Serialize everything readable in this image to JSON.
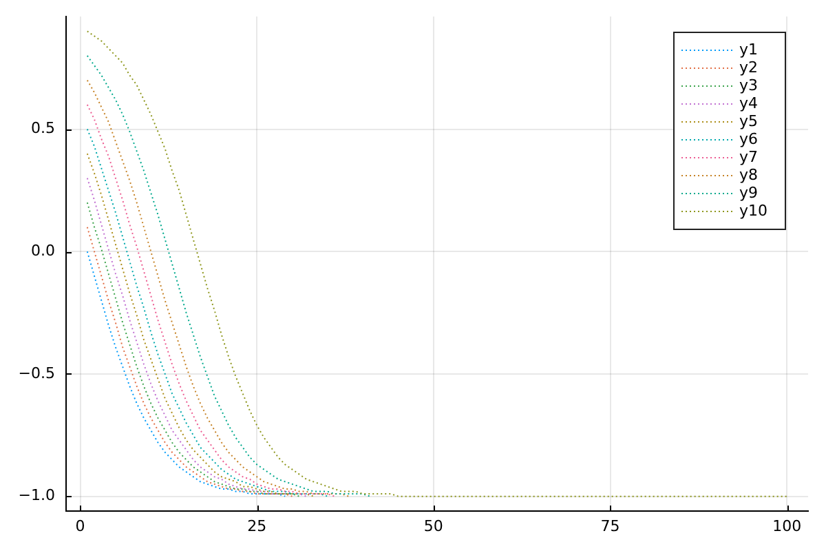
{
  "chart_data": {
    "type": "line",
    "x": [
      1,
      2,
      3,
      4,
      5,
      6,
      7,
      8,
      9,
      10,
      11,
      12,
      13,
      14,
      15,
      16,
      17,
      18,
      19,
      20,
      21,
      22,
      23,
      24,
      25,
      26,
      27,
      28,
      29,
      30,
      31,
      32,
      33,
      34,
      35,
      36,
      37,
      38,
      39,
      40,
      41,
      42,
      43,
      44,
      45,
      100
    ],
    "series": [
      {
        "name": "y1",
        "color": "#009af9",
        "x": [
          1,
          2,
          3,
          4,
          5,
          6,
          7,
          8,
          9,
          10,
          11,
          12,
          13,
          14,
          15,
          16,
          17,
          18,
          19,
          20,
          21,
          22,
          23,
          24,
          25,
          26,
          27,
          28,
          29
        ],
        "values": [
          0,
          -0.1,
          -0.2,
          -0.3,
          -0.39,
          -0.47,
          -0.55,
          -0.62,
          -0.68,
          -0.73,
          -0.78,
          -0.82,
          -0.85,
          -0.88,
          -0.9,
          -0.92,
          -0.94,
          -0.95,
          -0.96,
          -0.97,
          -0.97,
          -0.98,
          -0.98,
          -0.99,
          -0.99,
          -0.99,
          -0.99,
          -0.99,
          -1
        ]
      },
      {
        "name": "y2",
        "color": "#e26f46",
        "x": [
          1,
          2,
          3,
          4,
          5,
          6,
          7,
          8,
          9,
          10,
          11,
          12,
          13,
          14,
          15,
          16,
          17,
          18,
          19,
          20,
          21,
          22,
          23,
          24,
          25,
          26,
          27,
          28,
          29,
          30
        ],
        "values": [
          0.1,
          0,
          -0.1,
          -0.2,
          -0.29,
          -0.39,
          -0.47,
          -0.55,
          -0.62,
          -0.68,
          -0.73,
          -0.78,
          -0.82,
          -0.85,
          -0.88,
          -0.9,
          -0.92,
          -0.94,
          -0.95,
          -0.96,
          -0.97,
          -0.97,
          -0.98,
          -0.98,
          -0.99,
          -0.99,
          -0.99,
          -0.99,
          -0.99,
          -1
        ]
      },
      {
        "name": "y3",
        "color": "#3da44d",
        "x": [
          1,
          2,
          3,
          4,
          5,
          6,
          7,
          8,
          9,
          10,
          11,
          12,
          13,
          14,
          15,
          16,
          17,
          18,
          19,
          20,
          21,
          22,
          23,
          24,
          25,
          26,
          27,
          28,
          29,
          30,
          31
        ],
        "values": [
          0.2,
          0.1,
          0.01,
          -0.09,
          -0.19,
          -0.29,
          -0.38,
          -0.47,
          -0.55,
          -0.62,
          -0.68,
          -0.73,
          -0.78,
          -0.82,
          -0.85,
          -0.88,
          -0.9,
          -0.92,
          -0.94,
          -0.95,
          -0.96,
          -0.97,
          -0.97,
          -0.98,
          -0.98,
          -0.99,
          -0.99,
          -0.99,
          -0.99,
          -0.99,
          -1
        ]
      },
      {
        "name": "y4",
        "color": "#c271d2",
        "x": [
          1,
          2,
          3,
          4,
          5,
          6,
          7,
          8,
          9,
          10,
          11,
          12,
          13,
          14,
          15,
          16,
          17,
          18,
          19,
          20,
          21,
          22,
          23,
          24,
          25,
          26,
          27,
          28,
          29,
          30,
          31,
          32
        ],
        "values": [
          0.3,
          0.21,
          0.11,
          0.01,
          -0.09,
          -0.18,
          -0.28,
          -0.37,
          -0.46,
          -0.54,
          -0.61,
          -0.67,
          -0.73,
          -0.77,
          -0.81,
          -0.85,
          -0.88,
          -0.9,
          -0.92,
          -0.93,
          -0.95,
          -0.96,
          -0.97,
          -0.97,
          -0.98,
          -0.98,
          -0.99,
          -0.99,
          -0.99,
          -0.99,
          -0.99,
          -1
        ]
      },
      {
        "name": "y5",
        "color": "#ac8e18",
        "x": [
          1,
          2,
          3,
          4,
          5,
          6,
          7,
          8,
          9,
          10,
          11,
          12,
          13,
          14,
          15,
          16,
          17,
          18,
          19,
          20,
          21,
          22,
          23,
          24,
          25,
          26,
          27,
          28,
          29,
          30,
          31,
          32,
          33
        ],
        "values": [
          0.4,
          0.32,
          0.23,
          0.13,
          0.03,
          -0.07,
          -0.17,
          -0.26,
          -0.36,
          -0.44,
          -0.52,
          -0.6,
          -0.66,
          -0.72,
          -0.77,
          -0.81,
          -0.84,
          -0.87,
          -0.9,
          -0.92,
          -0.93,
          -0.94,
          -0.96,
          -0.96,
          -0.97,
          -0.98,
          -0.98,
          -0.99,
          -0.99,
          -0.99,
          -0.99,
          -0.99,
          -1
        ]
      },
      {
        "name": "y6",
        "color": "#00a9ad",
        "x": [
          1,
          2,
          3,
          4,
          5,
          6,
          7,
          8,
          9,
          10,
          11,
          12,
          13,
          14,
          15,
          16,
          17,
          18,
          19,
          20,
          21,
          22,
          23,
          24,
          25,
          26,
          27,
          28,
          29,
          30,
          31,
          32,
          33,
          34,
          35
        ],
        "values": [
          0.5,
          0.43,
          0.34,
          0.25,
          0.16,
          0.06,
          -0.04,
          -0.14,
          -0.23,
          -0.33,
          -0.42,
          -0.5,
          -0.58,
          -0.64,
          -0.7,
          -0.75,
          -0.8,
          -0.83,
          -0.86,
          -0.89,
          -0.91,
          -0.93,
          -0.94,
          -0.95,
          -0.96,
          -0.97,
          -0.98,
          -0.98,
          -0.98,
          -0.99,
          -0.99,
          -0.99,
          -0.99,
          -0.99,
          -1
        ]
      },
      {
        "name": "y7",
        "color": "#ed5e93",
        "x": [
          1,
          2,
          3,
          4,
          5,
          6,
          7,
          8,
          9,
          10,
          11,
          12,
          13,
          14,
          15,
          16,
          17,
          18,
          19,
          20,
          21,
          22,
          23,
          24,
          25,
          26,
          27,
          28,
          29,
          30,
          31,
          32,
          33,
          34,
          35,
          36
        ],
        "values": [
          0.6,
          0.54,
          0.46,
          0.39,
          0.3,
          0.21,
          0.11,
          0.02,
          -0.08,
          -0.18,
          -0.28,
          -0.37,
          -0.46,
          -0.54,
          -0.61,
          -0.67,
          -0.73,
          -0.77,
          -0.81,
          -0.85,
          -0.88,
          -0.9,
          -0.92,
          -0.93,
          -0.95,
          -0.96,
          -0.97,
          -0.97,
          -0.98,
          -0.98,
          -0.99,
          -0.99,
          -0.99,
          -0.99,
          -0.99,
          -1
        ]
      },
      {
        "name": "y8",
        "color": "#c68225",
        "x": [
          1,
          2,
          3,
          4,
          5,
          6,
          7,
          8,
          9,
          10,
          11,
          12,
          13,
          14,
          15,
          16,
          17,
          18,
          19,
          20,
          21,
          22,
          23,
          24,
          25,
          26,
          27,
          28,
          29,
          30,
          31,
          32,
          33,
          34,
          35,
          36,
          37,
          38
        ],
        "values": [
          0.7,
          0.65,
          0.59,
          0.53,
          0.45,
          0.37,
          0.29,
          0.2,
          0.1,
          0,
          -0.1,
          -0.2,
          -0.29,
          -0.38,
          -0.47,
          -0.55,
          -0.62,
          -0.68,
          -0.73,
          -0.78,
          -0.82,
          -0.85,
          -0.88,
          -0.9,
          -0.92,
          -0.94,
          -0.95,
          -0.96,
          -0.97,
          -0.97,
          -0.98,
          -0.98,
          -0.99,
          -0.99,
          -0.99,
          -0.99,
          -0.99,
          -1
        ]
      },
      {
        "name": "y9",
        "color": "#00a98d",
        "x": [
          1,
          2,
          3,
          4,
          5,
          6,
          7,
          8,
          9,
          10,
          11,
          12,
          13,
          14,
          15,
          16,
          17,
          18,
          19,
          20,
          21,
          22,
          23,
          24,
          25,
          26,
          27,
          28,
          29,
          30,
          31,
          32,
          33,
          34,
          35,
          36,
          37,
          38,
          39,
          40,
          41
        ],
        "values": [
          0.8,
          0.76,
          0.72,
          0.67,
          0.62,
          0.56,
          0.49,
          0.41,
          0.33,
          0.24,
          0.15,
          0.05,
          -0.05,
          -0.15,
          -0.25,
          -0.34,
          -0.43,
          -0.51,
          -0.59,
          -0.65,
          -0.71,
          -0.76,
          -0.8,
          -0.84,
          -0.87,
          -0.89,
          -0.91,
          -0.93,
          -0.94,
          -0.95,
          -0.96,
          -0.97,
          -0.98,
          -0.98,
          -0.98,
          -0.99,
          -0.99,
          -0.99,
          -0.99,
          -0.99,
          -1
        ]
      },
      {
        "name": "y10",
        "color": "#8e971d",
        "values": [
          0.9,
          0.88,
          0.86,
          0.83,
          0.8,
          0.77,
          0.72,
          0.68,
          0.62,
          0.56,
          0.49,
          0.42,
          0.33,
          0.25,
          0.15,
          0.05,
          -0.05,
          -0.15,
          -0.24,
          -0.34,
          -0.43,
          -0.51,
          -0.58,
          -0.65,
          -0.71,
          -0.76,
          -0.8,
          -0.84,
          -0.87,
          -0.89,
          -0.91,
          -0.93,
          -0.94,
          -0.95,
          -0.96,
          -0.97,
          -0.98,
          -0.98,
          -0.98,
          -0.99,
          -0.99,
          -0.99,
          -0.99,
          -0.99,
          -1,
          -1
        ]
      }
    ],
    "xlim": [
      -2,
      103
    ],
    "ylim": [
      -1.06,
      0.96
    ],
    "xticks": [
      0,
      25,
      50,
      75,
      100
    ],
    "yticks": [
      {
        "value": -1,
        "label": "−1.0"
      },
      {
        "value": -0.5,
        "label": "−0.5"
      },
      {
        "value": 0,
        "label": "0.0"
      },
      0.5
    ],
    "grid": true,
    "legend": "top right",
    "line_style": "dotted"
  }
}
